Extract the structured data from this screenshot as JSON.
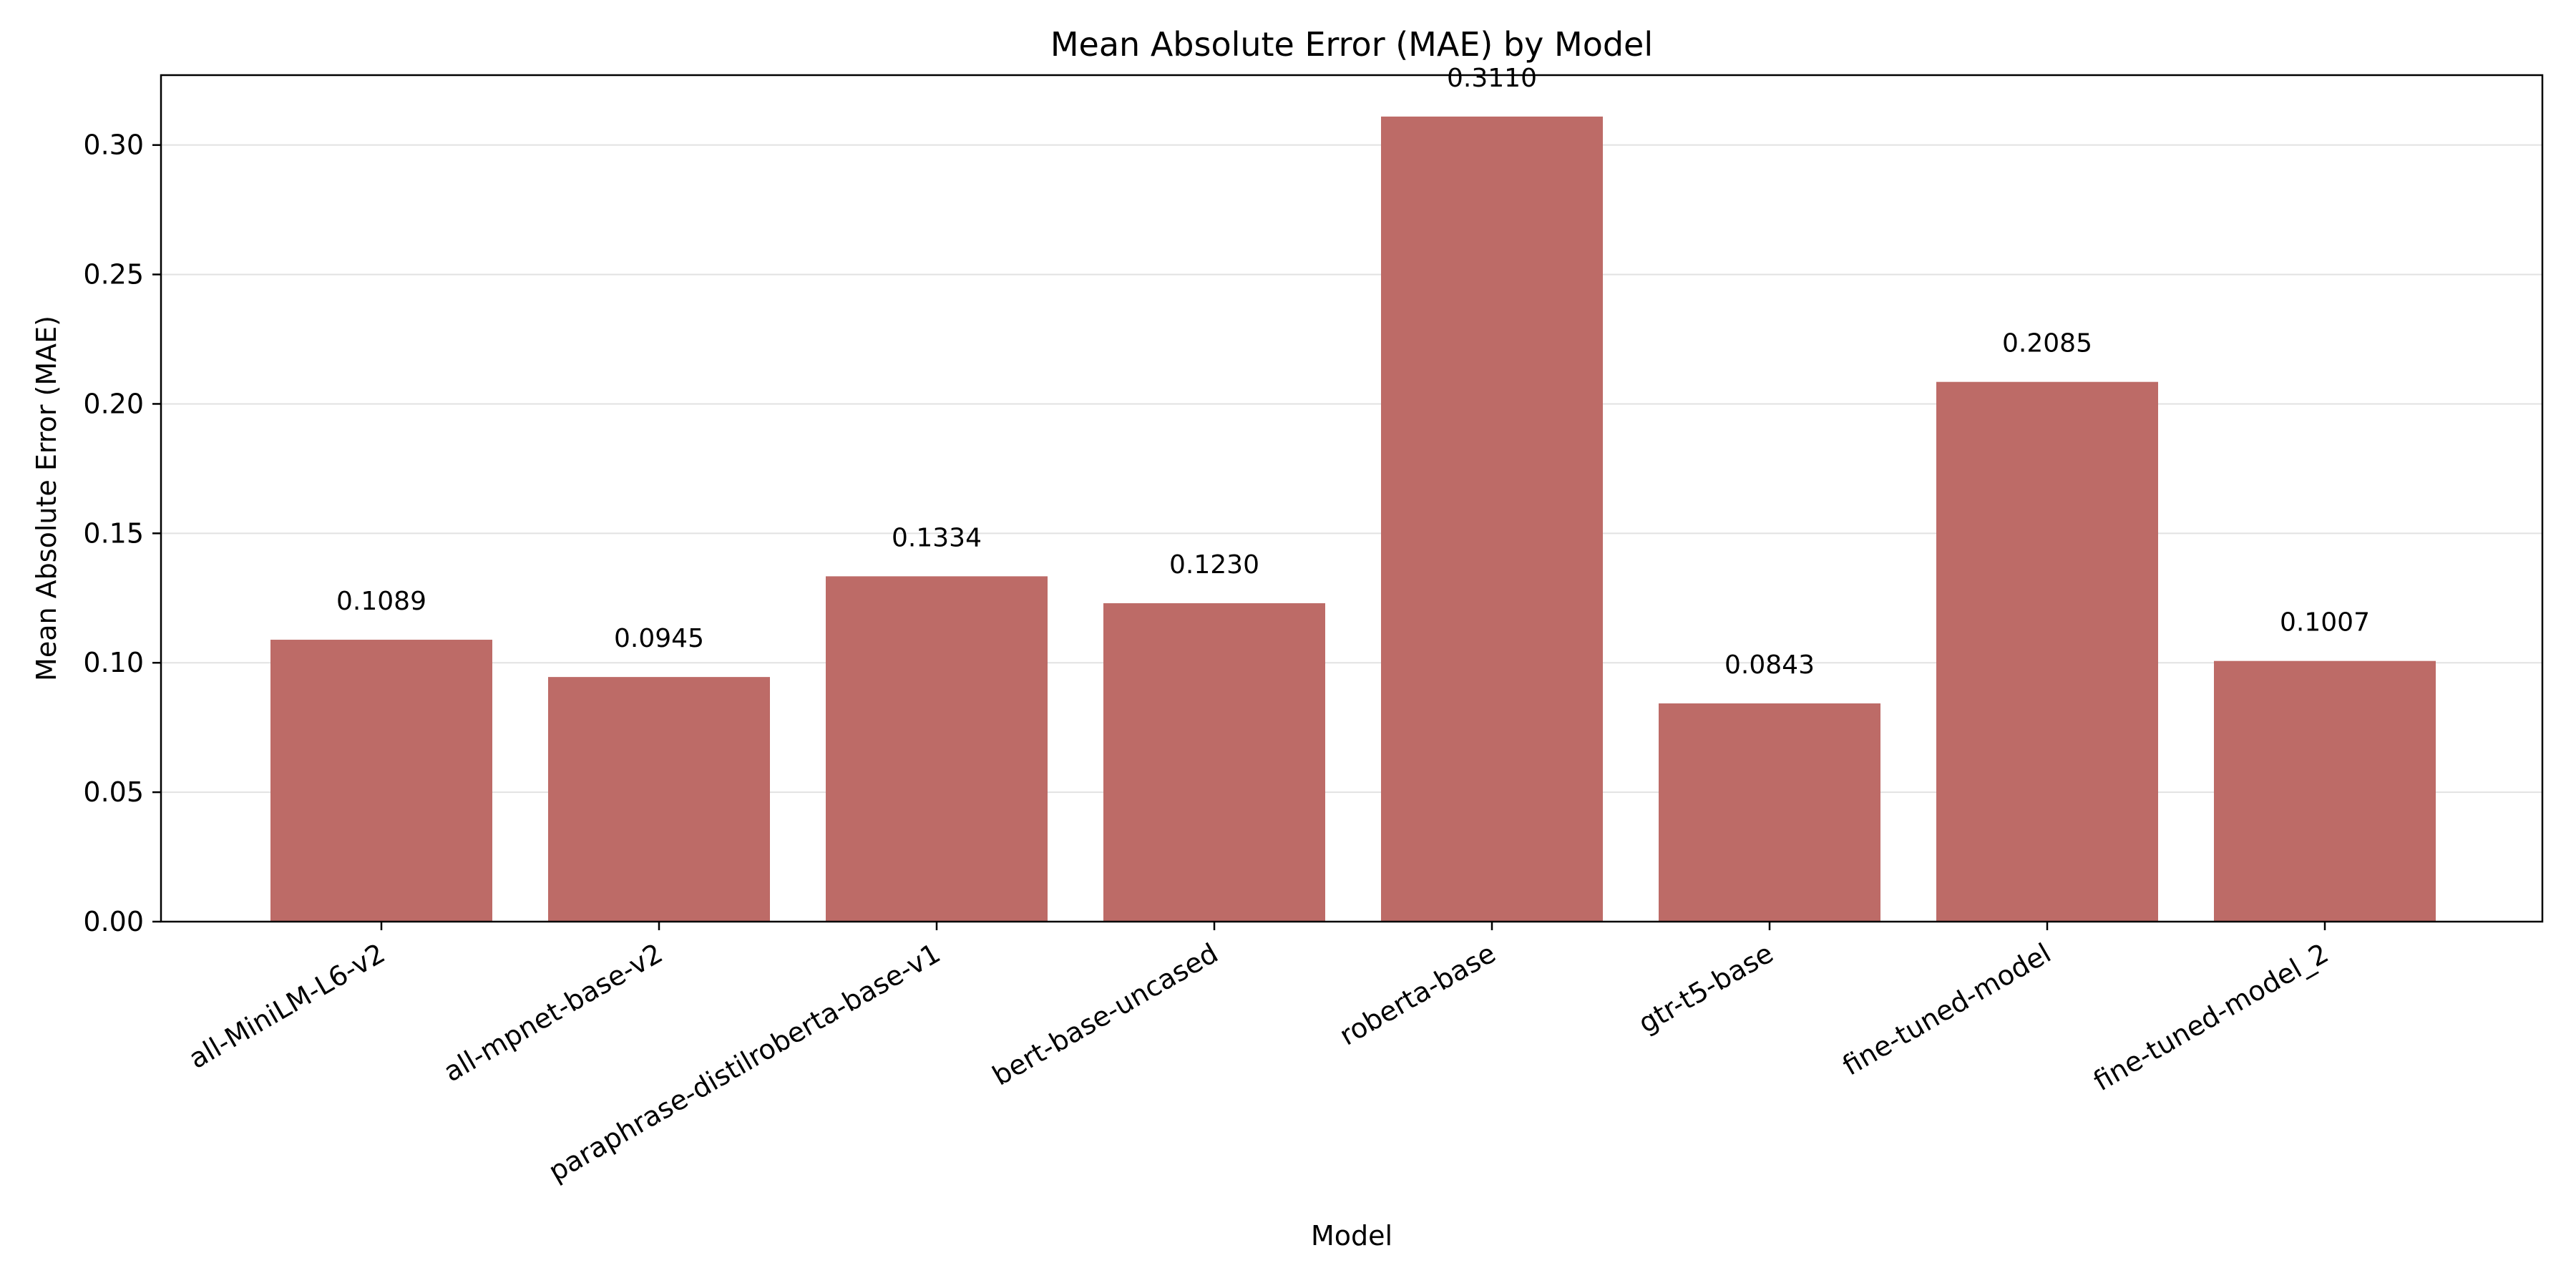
{
  "chart_data": {
    "type": "bar",
    "title": "Mean Absolute Error (MAE) by Model",
    "xlabel": "Model",
    "ylabel": "Mean Absolute Error (MAE)",
    "categories": [
      "all-MiniLM-L6-v2",
      "all-mpnet-base-v2",
      "paraphrase-distilroberta-base-v1",
      "bert-base-uncased",
      "roberta-base",
      "gtr-t5-base",
      "fine-tuned-model",
      "fine-tuned-model_2"
    ],
    "values": [
      0.1089,
      0.0945,
      0.1334,
      0.123,
      0.311,
      0.0843,
      0.2085,
      0.1007
    ],
    "value_labels": [
      "0.1089",
      "0.0945",
      "0.1334",
      "0.1230",
      "0.3110",
      "0.0843",
      "0.2085",
      "0.1007"
    ],
    "ylim": [
      0,
      0.327
    ],
    "yticks": [
      0.0,
      0.05,
      0.1,
      0.15,
      0.2,
      0.25,
      0.3
    ],
    "ytick_labels": [
      "0.00",
      "0.05",
      "0.10",
      "0.15",
      "0.20",
      "0.25",
      "0.30"
    ],
    "grid": "y",
    "bar_color": "#bd6b67"
  }
}
